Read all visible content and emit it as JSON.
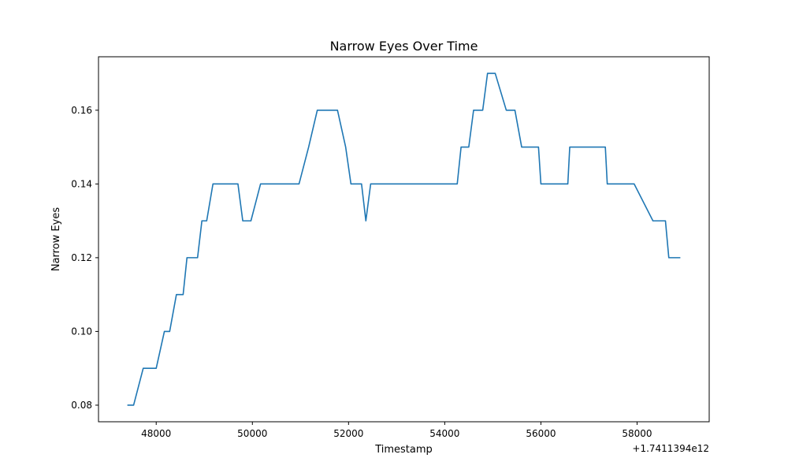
{
  "chart_data": {
    "type": "line",
    "title": "Narrow Eyes Over Time",
    "xlabel": "Timestamp",
    "ylabel": "Narrow Eyes",
    "x_offset_label": "+1.7411394e12",
    "xlim": [
      46800,
      59500
    ],
    "ylim": [
      0.0755,
      0.1745
    ],
    "x_ticks": [
      48000,
      50000,
      52000,
      54000,
      56000,
      58000
    ],
    "x_tick_labels": [
      "48000",
      "50000",
      "52000",
      "54000",
      "56000",
      "58000"
    ],
    "y_ticks": [
      0.08,
      0.1,
      0.12,
      0.14,
      0.16
    ],
    "y_tick_labels": [
      "0.08",
      "0.10",
      "0.12",
      "0.14",
      "0.16"
    ],
    "grid": false,
    "series": [
      {
        "color": "#1f77b4",
        "x": [
          47400,
          47530,
          47730,
          48000,
          48170,
          48280,
          48420,
          48560,
          48640,
          48860,
          48950,
          49050,
          49180,
          49700,
          49800,
          49970,
          50170,
          50970,
          51170,
          51350,
          51770,
          51940,
          52050,
          52270,
          52360,
          52460,
          54260,
          54340,
          54500,
          54600,
          54790,
          54890,
          55050,
          55280,
          55460,
          55600,
          55950,
          56000,
          56560,
          56600,
          57340,
          57380,
          57940,
          58330,
          58590,
          58660,
          58900
        ],
        "y": [
          0.08,
          0.08,
          0.09,
          0.09,
          0.1,
          0.1,
          0.11,
          0.11,
          0.12,
          0.12,
          0.13,
          0.13,
          0.14,
          0.14,
          0.13,
          0.13,
          0.14,
          0.14,
          0.15,
          0.16,
          0.16,
          0.15,
          0.14,
          0.14,
          0.13,
          0.14,
          0.14,
          0.15,
          0.15,
          0.16,
          0.16,
          0.17,
          0.17,
          0.16,
          0.16,
          0.15,
          0.15,
          0.14,
          0.14,
          0.15,
          0.15,
          0.14,
          0.14,
          0.13,
          0.13,
          0.12,
          0.12
        ]
      }
    ]
  }
}
